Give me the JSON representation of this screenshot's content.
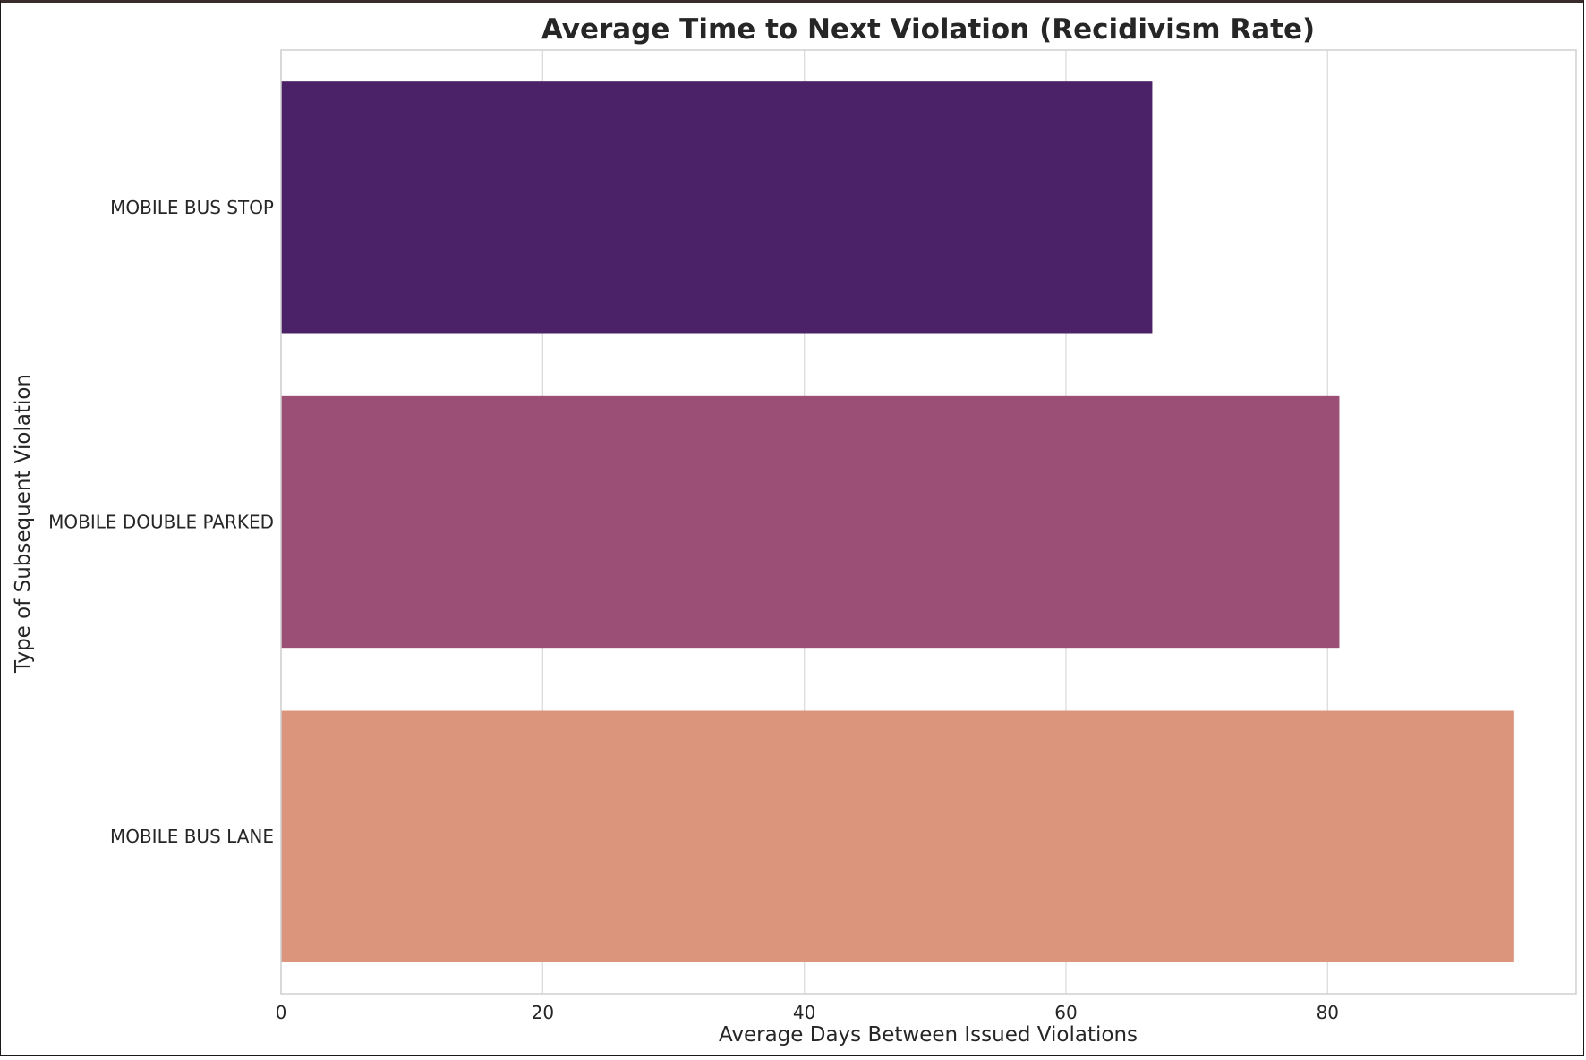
{
  "chart_data": {
    "type": "bar",
    "orientation": "horizontal",
    "title": "Average Time to Next Violation (Recidivism Rate)",
    "xlabel": "Average Days Between Issued Violations",
    "ylabel": "Type of Subsequent Violation",
    "categories": [
      "MOBILE BUS STOP",
      "MOBILE DOUBLE PARKED",
      "MOBILE BUS LANE"
    ],
    "values": [
      66.6,
      80.9,
      94.2
    ],
    "colors": [
      "#4b2168",
      "#9c4f76",
      "#da957c"
    ],
    "xlim": [
      0,
      99
    ],
    "xticks": [
      0,
      20,
      40,
      60,
      80
    ],
    "grid": true,
    "grid_color": "#dcdcdc",
    "legend": "none"
  }
}
